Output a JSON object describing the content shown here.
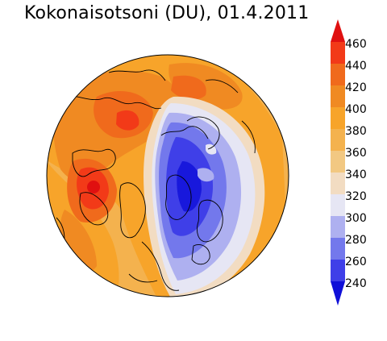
{
  "title": "Kokonaisotsoni (DU), 01.4.2011",
  "colorbar": {
    "levels": [
      460,
      440,
      420,
      400,
      380,
      360,
      340,
      320,
      300,
      280,
      260,
      240
    ],
    "labels": [
      "460",
      "440",
      "420",
      "400",
      "380",
      "360",
      "340",
      "320",
      "300",
      "280",
      "260",
      "240"
    ],
    "colors": {
      "above_460": "#e01010",
      "440_460": "#f23a18",
      "420_440": "#f06a1c",
      "400_420": "#f08a22",
      "380_400": "#f7a42a",
      "360_380": "#f4b24e",
      "340_360": "#f2c882",
      "320_340": "#f2dcc2",
      "300_320": "#e6e6f4",
      "280_300": "#aeb0f0",
      "260_280": "#7378ec",
      "240_260": "#3f3fe8",
      "below_240": "#1010d8"
    }
  }
}
